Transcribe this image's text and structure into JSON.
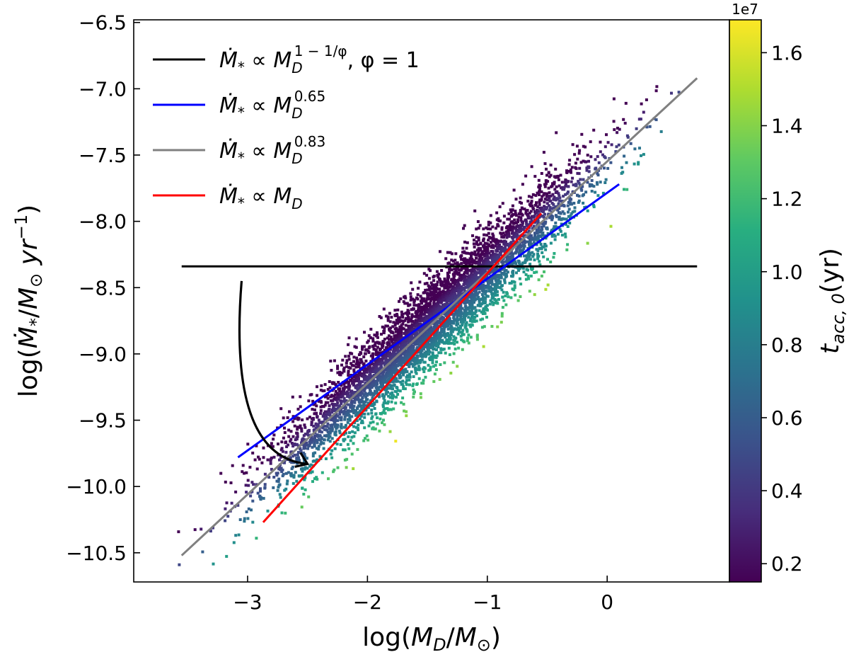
{
  "chart_data": {
    "type": "scatter",
    "xlabel": "log(M_D/M_⊙)",
    "ylabel": "log(Ṁ_*/M_⊙ yr^−1)",
    "xlim": [
      -3.95,
      1.02
    ],
    "ylim": [
      -10.72,
      -6.48
    ],
    "xticks": [
      -3,
      -2,
      -1,
      0
    ],
    "xtick_labels": [
      "−3",
      "−2",
      "−1",
      "0"
    ],
    "yticks": [
      -10.5,
      -10.0,
      -9.5,
      -9.0,
      -8.5,
      -8.0,
      -7.5,
      -7.0,
      -6.5
    ],
    "ytick_labels": [
      "−10.5",
      "−10.0",
      "−9.5",
      "−9.0",
      "−8.5",
      "−8.0",
      "−7.5",
      "−7.0",
      "−6.5"
    ],
    "grid": false,
    "legend_position": "upper-left",
    "scatter": {
      "description_color_variable": "t_acc,0 (yr)",
      "relation_slope": 0.83,
      "intercept_at_x0": -7.55,
      "x_range": [
        -3.6,
        0.75
      ],
      "scatter_width_dex": 0.3,
      "colormap": "viridis"
    },
    "series": [
      {
        "name": "Ṁ_* ∝ M_D^(1−1/φ), φ = 1",
        "color": "#000000",
        "x": [
          -3.55,
          0.75
        ],
        "y": [
          -8.34,
          -8.34
        ]
      },
      {
        "name": "Ṁ_* ∝ M_D^0.65",
        "color": "#0000ff",
        "x": [
          -3.08,
          0.1
        ],
        "y": [
          -9.78,
          -7.72
        ]
      },
      {
        "name": "Ṁ_* ∝ M_D^0.83",
        "color": "#808080",
        "x": [
          -3.55,
          0.75
        ],
        "y": [
          -10.52,
          -6.92
        ]
      },
      {
        "name": "Ṁ_* ∝ M_D",
        "color": "#ff0000",
        "x": [
          -2.87,
          -0.55
        ],
        "y": [
          -10.27,
          -7.94
        ]
      }
    ],
    "annotations": [
      {
        "type": "curved-arrow",
        "from": [
          -3.05,
          -8.45
        ],
        "to": [
          -2.5,
          -9.83
        ],
        "color": "#000000"
      }
    ],
    "colorbar": {
      "label": "t_acc,0 (yr)",
      "offset_label": "1e7",
      "range": [
        0.15,
        1.69
      ],
      "ticks": [
        0.2,
        0.4,
        0.6,
        0.8,
        1.0,
        1.2,
        1.4,
        1.6
      ],
      "tick_labels": [
        "0.2",
        "0.4",
        "0.6",
        "0.8",
        "1.0",
        "1.2",
        "1.4",
        "1.6"
      ],
      "colormap": "viridis"
    }
  }
}
